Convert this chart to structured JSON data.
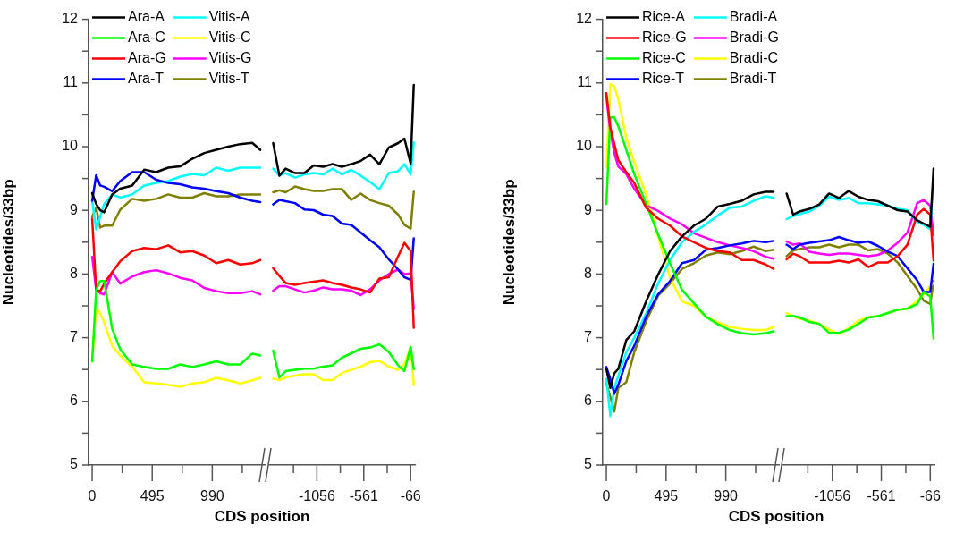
{
  "chart_data": [
    {
      "type": "line",
      "ylabel": "Nucleotides/33bp",
      "xlabel": "CDS position",
      "legend": "top left",
      "xlim": [
        -30,
        1430
      ],
      "ylim": [
        5,
        12
      ],
      "xticks": [
        0,
        {
          "value": 247.5,
          "label": null
        },
        495,
        {
          "value": 742.5,
          "label": null
        },
        990,
        {
          "value": 1237.5,
          "label": null
        }
      ],
      "yticks": [
        5,
        {
          "value": 5.5,
          "label": null
        },
        6,
        {
          "value": 6.5,
          "label": null
        },
        7,
        {
          "value": 7.5,
          "label": null
        },
        8,
        {
          "value": 8.5,
          "label": null
        },
        9,
        {
          "value": 9.5,
          "label": null
        },
        10,
        {
          "value": 10.5,
          "label": null
        },
        11,
        {
          "value": 11.5,
          "label": null
        },
        12
      ],
      "x": [
        0,
        33,
        66,
        99,
        165,
        231,
        330,
        429,
        528,
        627,
        726,
        825,
        924,
        1023,
        1122,
        1221,
        1320,
        1386
      ],
      "series": [
        {
          "name": "Ara-A",
          "color": "#000000",
          "values": [
            9.27,
            9.1,
            9.0,
            8.97,
            9.25,
            9.34,
            9.39,
            9.64,
            9.6,
            9.67,
            9.69,
            9.81,
            9.9,
            9.95,
            10.0,
            10.04,
            10.06,
            9.95
          ]
        },
        {
          "name": "Ara-C",
          "color": "#00ff00",
          "values": [
            6.63,
            7.75,
            7.89,
            7.89,
            7.14,
            6.82,
            6.58,
            6.54,
            6.51,
            6.51,
            6.58,
            6.54,
            6.58,
            6.63,
            6.58,
            6.58,
            6.75,
            6.72
          ]
        },
        {
          "name": "Ara-G",
          "color": "#ff0000",
          "values": [
            8.87,
            7.75,
            7.73,
            7.85,
            8.03,
            8.2,
            8.36,
            8.41,
            8.39,
            8.45,
            8.34,
            8.36,
            8.29,
            8.17,
            8.22,
            8.15,
            8.17,
            8.22
          ]
        },
        {
          "name": "Ara-T",
          "color": "#0000ff",
          "values": [
            9.15,
            9.55,
            9.39,
            9.37,
            9.3,
            9.46,
            9.6,
            9.6,
            9.48,
            9.43,
            9.41,
            9.36,
            9.34,
            9.3,
            9.27,
            9.2,
            9.15,
            9.13
          ]
        },
        {
          "name": "Vitis-A",
          "color": "#00ffff",
          "values": [
            9.15,
            8.7,
            8.9,
            9.1,
            9.25,
            9.2,
            9.25,
            9.39,
            9.43,
            9.46,
            9.53,
            9.57,
            9.55,
            9.67,
            9.62,
            9.67,
            9.67,
            9.67
          ]
        },
        {
          "name": "Vitis-C",
          "color": "#ffff00",
          "values": [
            6.63,
            7.47,
            7.38,
            7.24,
            6.87,
            6.72,
            6.54,
            6.3,
            6.28,
            6.26,
            6.23,
            6.28,
            6.3,
            6.37,
            6.33,
            6.28,
            6.33,
            6.37
          ]
        },
        {
          "name": "Vitis-G",
          "color": "#ff00ff",
          "values": [
            8.27,
            7.75,
            7.7,
            7.68,
            8.03,
            7.85,
            7.96,
            8.03,
            8.06,
            8.01,
            7.94,
            7.9,
            7.78,
            7.73,
            7.7,
            7.7,
            7.73,
            7.68
          ]
        },
        {
          "name": "Vitis-T",
          "color": "#808000",
          "values": [
            8.9,
            9.04,
            8.73,
            8.76,
            8.76,
            9.01,
            9.18,
            9.15,
            9.18,
            9.25,
            9.2,
            9.2,
            9.27,
            9.22,
            9.22,
            9.25,
            9.25,
            9.25
          ]
        }
      ]
    },
    {
      "type": "line",
      "tick_labels": "x",
      "xlim": [
        -1560,
        -15
      ],
      "ylim": [
        5,
        12
      ],
      "xticks": [
        {
          "value": -1303.5,
          "label": null
        },
        -1056,
        {
          "value": -808.5,
          "label": null
        },
        -561,
        {
          "value": -313.5,
          "label": null
        },
        -66
      ],
      "x": [
        -1518,
        -1452,
        -1386,
        -1287,
        -1188,
        -1089,
        -990,
        -891,
        -792,
        -693,
        -594,
        -495,
        -396,
        -297,
        -198,
        -132,
        -66,
        -33
      ],
      "series": [
        {
          "color": "#000000",
          "values": [
            10.04,
            9.53,
            9.64,
            9.57,
            9.57,
            9.69,
            9.67,
            9.71,
            9.67,
            9.71,
            9.76,
            9.86,
            9.71,
            9.97,
            10.04,
            10.11,
            9.72,
            10.95
          ]
        },
        {
          "color": "#00ff00",
          "values": [
            6.79,
            6.37,
            6.47,
            6.49,
            6.51,
            6.51,
            6.54,
            6.56,
            6.68,
            6.75,
            6.82,
            6.84,
            6.89,
            6.77,
            6.56,
            6.47,
            6.85,
            6.5
          ]
        },
        {
          "color": "#ff0000",
          "values": [
            8.08,
            7.96,
            7.85,
            7.82,
            7.85,
            7.87,
            7.89,
            7.85,
            7.82,
            7.78,
            7.75,
            7.7,
            7.92,
            7.94,
            8.27,
            8.48,
            8.35,
            7.15
          ]
        },
        {
          "color": "#0000ff",
          "values": [
            9.08,
            9.15,
            9.13,
            9.1,
            9.0,
            8.99,
            8.92,
            8.9,
            8.78,
            8.76,
            8.64,
            8.52,
            8.41,
            8.22,
            8.06,
            7.94,
            7.9,
            8.55
          ]
        },
        {
          "color": "#00ffff",
          "values": [
            9.64,
            9.53,
            9.57,
            9.5,
            9.55,
            9.57,
            9.55,
            9.64,
            9.55,
            9.62,
            9.53,
            9.43,
            9.32,
            9.57,
            9.6,
            9.71,
            9.55,
            10.05
          ]
        },
        {
          "color": "#ffff00",
          "values": [
            6.35,
            6.33,
            6.37,
            6.4,
            6.42,
            6.42,
            6.33,
            6.33,
            6.44,
            6.49,
            6.54,
            6.61,
            6.63,
            6.54,
            6.49,
            6.58,
            6.85,
            6.25
          ]
        },
        {
          "color": "#ff00ff",
          "values": [
            7.73,
            7.8,
            7.8,
            7.75,
            7.7,
            7.73,
            7.78,
            7.75,
            7.75,
            7.73,
            7.66,
            7.75,
            7.89,
            7.99,
            8.06,
            7.99,
            8.0,
            7.45
          ]
        },
        {
          "color": "#808000",
          "values": [
            9.27,
            9.3,
            9.27,
            9.36,
            9.32,
            9.29,
            9.29,
            9.32,
            9.32,
            9.15,
            9.25,
            9.15,
            9.1,
            9.06,
            8.92,
            8.76,
            8.7,
            9.28
          ]
        }
      ]
    },
    {
      "type": "line",
      "ylabel": "Nucleotides/33bp",
      "xlabel": "CDS position",
      "legend": "top left",
      "xlim": [
        -30,
        1430
      ],
      "ylim": [
        5,
        12
      ],
      "xticks": [
        0,
        {
          "value": 247.5,
          "label": null
        },
        495,
        {
          "value": 742.5,
          "label": null
        },
        990,
        {
          "value": 1237.5,
          "label": null
        }
      ],
      "yticks": [
        5,
        {
          "value": 5.5,
          "label": null
        },
        6,
        {
          "value": 6.5,
          "label": null
        },
        7,
        {
          "value": 7.5,
          "label": null
        },
        8,
        {
          "value": 8.5,
          "label": null
        },
        9,
        {
          "value": 9.5,
          "label": null
        },
        10,
        {
          "value": 10.5,
          "label": null
        },
        11,
        {
          "value": 11.5,
          "label": null
        },
        12
      ],
      "x": [
        0,
        33,
        66,
        99,
        165,
        231,
        330,
        429,
        528,
        627,
        726,
        825,
        924,
        1023,
        1122,
        1221,
        1320,
        1386
      ],
      "series": [
        {
          "name": "Rice-A",
          "color": "#000000",
          "values": [
            6.51,
            6.21,
            6.44,
            6.51,
            6.96,
            7.1,
            7.57,
            7.99,
            8.36,
            8.59,
            8.76,
            8.87,
            9.06,
            9.1,
            9.15,
            9.25,
            9.29,
            9.29
          ]
        },
        {
          "name": "Rice-G",
          "color": "#ff0000",
          "values": [
            10.84,
            10.3,
            10.04,
            9.79,
            9.6,
            9.43,
            9.04,
            8.87,
            8.76,
            8.59,
            8.5,
            8.41,
            8.36,
            8.34,
            8.22,
            8.22,
            8.15,
            8.08
          ]
        },
        {
          "name": "Rice-C",
          "color": "#00ff00",
          "values": [
            9.1,
            10.46,
            10.46,
            10.32,
            9.95,
            9.57,
            9.1,
            8.62,
            8.17,
            7.75,
            7.54,
            7.33,
            7.21,
            7.12,
            7.07,
            7.05,
            7.07,
            7.1
          ]
        },
        {
          "name": "Rice-T",
          "color": "#0000ff",
          "values": [
            6.54,
            6.35,
            6.12,
            6.26,
            6.63,
            6.87,
            7.33,
            7.68,
            7.89,
            8.17,
            8.22,
            8.38,
            8.41,
            8.45,
            8.48,
            8.52,
            8.5,
            8.52
          ]
        },
        {
          "name": "Bradi-A",
          "color": "#00ffff",
          "values": [
            6.35,
            5.77,
            6.21,
            6.4,
            6.77,
            7.0,
            7.38,
            7.85,
            8.22,
            8.5,
            8.66,
            8.78,
            8.92,
            9.04,
            9.06,
            9.15,
            9.22,
            9.2
          ]
        },
        {
          "name": "Bradi-G",
          "color": "#ff00ff",
          "values": [
            10.79,
            10.23,
            9.9,
            9.69,
            9.57,
            9.34,
            9.08,
            8.99,
            8.87,
            8.78,
            8.64,
            8.57,
            8.5,
            8.45,
            8.41,
            8.36,
            8.27,
            8.24
          ]
        },
        {
          "name": "Bradi-C",
          "color": "#ffff00",
          "values": [
            9.67,
            10.98,
            10.95,
            10.74,
            10.14,
            9.76,
            9.25,
            8.59,
            7.94,
            7.57,
            7.5,
            7.33,
            7.24,
            7.17,
            7.14,
            7.12,
            7.12,
            7.17
          ]
        },
        {
          "name": "Bradi-T",
          "color": "#808000",
          "values": [
            6.28,
            6.07,
            5.84,
            6.21,
            6.3,
            6.77,
            7.26,
            7.66,
            7.85,
            8.08,
            8.17,
            8.29,
            8.34,
            8.31,
            8.36,
            8.43,
            8.36,
            8.38
          ]
        }
      ]
    },
    {
      "type": "line",
      "tick_labels": "x",
      "xlim": [
        -1560,
        -15
      ],
      "ylim": [
        5,
        12
      ],
      "xticks": [
        {
          "value": -1303.5,
          "label": null
        },
        -1056,
        {
          "value": -808.5,
          "label": null
        },
        -561,
        {
          "value": -313.5,
          "label": null
        },
        -66
      ],
      "x": [
        -1518,
        -1452,
        -1386,
        -1287,
        -1188,
        -1089,
        -990,
        -891,
        -792,
        -693,
        -594,
        -495,
        -396,
        -297,
        -198,
        -132,
        -66,
        -33
      ],
      "series": [
        {
          "color": "#000000",
          "values": [
            9.25,
            8.92,
            8.97,
            9.01,
            9.08,
            9.25,
            9.18,
            9.29,
            9.2,
            9.15,
            9.13,
            9.06,
            8.99,
            8.97,
            8.83,
            8.78,
            8.73,
            9.64
          ]
        },
        {
          "color": "#ff0000",
          "values": [
            8.22,
            8.31,
            8.27,
            8.17,
            8.17,
            8.17,
            8.2,
            8.17,
            8.22,
            8.1,
            8.17,
            8.17,
            8.27,
            8.45,
            8.92,
            9.01,
            8.92,
            8.2
          ]
        },
        {
          "color": "#00ff00",
          "values": [
            7.33,
            7.33,
            7.31,
            7.24,
            7.21,
            7.07,
            7.07,
            7.12,
            7.21,
            7.31,
            7.33,
            7.38,
            7.43,
            7.45,
            7.52,
            7.71,
            7.64,
            6.98
          ]
        },
        {
          "color": "#0000ff",
          "values": [
            8.45,
            8.38,
            8.45,
            8.48,
            8.5,
            8.52,
            8.57,
            8.52,
            8.48,
            8.5,
            8.43,
            8.34,
            8.27,
            8.08,
            7.89,
            7.71,
            7.71,
            8.15
          ]
        },
        {
          "color": "#00ffff",
          "values": [
            8.85,
            8.9,
            8.93,
            8.97,
            9.06,
            9.2,
            9.15,
            9.18,
            9.1,
            9.1,
            9.08,
            9.06,
            9.01,
            8.99,
            8.8,
            8.76,
            8.69,
            9.48
          ]
        },
        {
          "color": "#ff00ff",
          "values": [
            8.5,
            8.45,
            8.47,
            8.34,
            8.31,
            8.29,
            8.31,
            8.31,
            8.29,
            8.27,
            8.29,
            8.36,
            8.48,
            8.64,
            9.1,
            9.15,
            9.06,
            8.6
          ]
        },
        {
          "color": "#ffff00",
          "values": [
            7.38,
            7.33,
            7.29,
            7.26,
            7.21,
            7.12,
            7.05,
            7.14,
            7.26,
            7.31,
            7.33,
            7.38,
            7.43,
            7.45,
            7.57,
            7.68,
            7.8,
            7.85
          ]
        },
        {
          "color": "#808000",
          "values": [
            8.27,
            8.36,
            8.38,
            8.41,
            8.41,
            8.45,
            8.41,
            8.45,
            8.45,
            8.36,
            8.38,
            8.31,
            8.17,
            7.96,
            7.75,
            7.57,
            7.52,
            7.88
          ]
        }
      ]
    }
  ]
}
